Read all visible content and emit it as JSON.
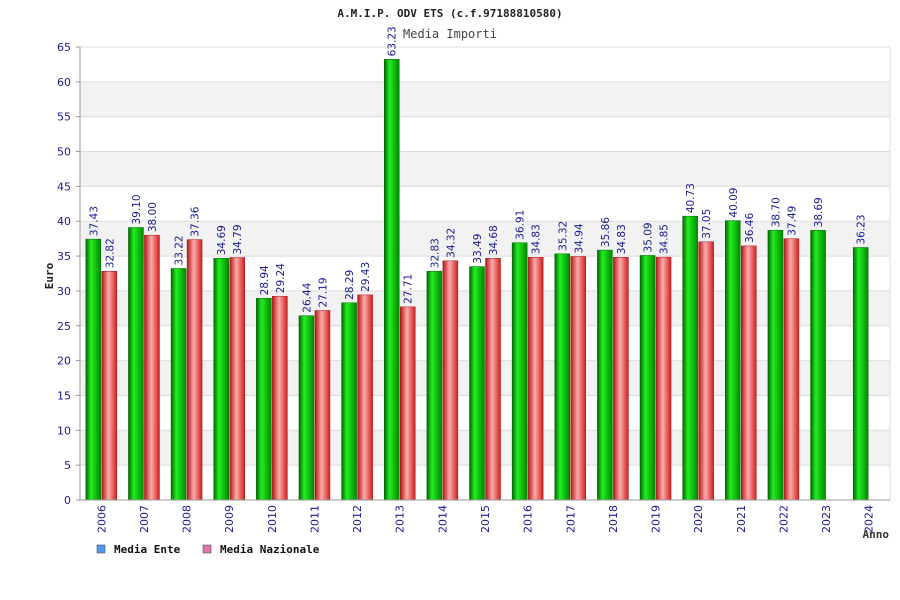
{
  "chart_data": {
    "type": "bar",
    "title": "A.M.I.P. ODV ETS (c.f.97188810580)",
    "subtitle": "Media Importi",
    "xlabel": "Anno",
    "ylabel": "Euro",
    "ylim": [
      0,
      65
    ],
    "yticks": [
      0,
      5,
      10,
      15,
      20,
      25,
      30,
      35,
      40,
      45,
      50,
      55,
      60,
      65
    ],
    "grid": true,
    "legend_position": "bottom-left",
    "categories": [
      "2006",
      "2007",
      "2008",
      "2009",
      "2010",
      "2011",
      "2012",
      "2013",
      "2014",
      "2015",
      "2016",
      "2017",
      "2018",
      "2019",
      "2020",
      "2021",
      "2022",
      "2023",
      "2024"
    ],
    "series": [
      {
        "name": "Media Ente",
        "color": "#00aa00",
        "legend_color": "#5599ee",
        "values": [
          37.43,
          39.1,
          33.22,
          34.69,
          28.94,
          26.44,
          28.29,
          63.23,
          32.83,
          33.49,
          36.91,
          35.32,
          35.86,
          35.09,
          40.73,
          40.09,
          38.7,
          38.69,
          36.23
        ],
        "labels": [
          "37.43",
          "39.10",
          "33.22",
          "34.69",
          "28.94",
          "26.44",
          "28.29",
          "63.23",
          "32.83",
          "33.49",
          "36.91",
          "35.32",
          "35.86",
          "35.09",
          "40.73",
          "40.09",
          "38.70",
          "38.69",
          "36.23"
        ]
      },
      {
        "name": "Media Nazionale",
        "color": "#e03030",
        "legend_color": "#dd77aa",
        "values": [
          32.82,
          38.0,
          37.36,
          34.79,
          29.24,
          27.19,
          29.43,
          27.71,
          34.32,
          34.68,
          34.83,
          34.94,
          34.83,
          34.85,
          37.05,
          36.46,
          37.49,
          null,
          null
        ],
        "labels": [
          "32.82",
          "38.00",
          "37.36",
          "34.79",
          "29.24",
          "27.19",
          "29.43",
          "27.71",
          "34.32",
          "34.68",
          "34.83",
          "34.94",
          "34.83",
          "34.85",
          "37.05",
          "36.46",
          "37.49",
          null,
          null
        ]
      }
    ]
  }
}
